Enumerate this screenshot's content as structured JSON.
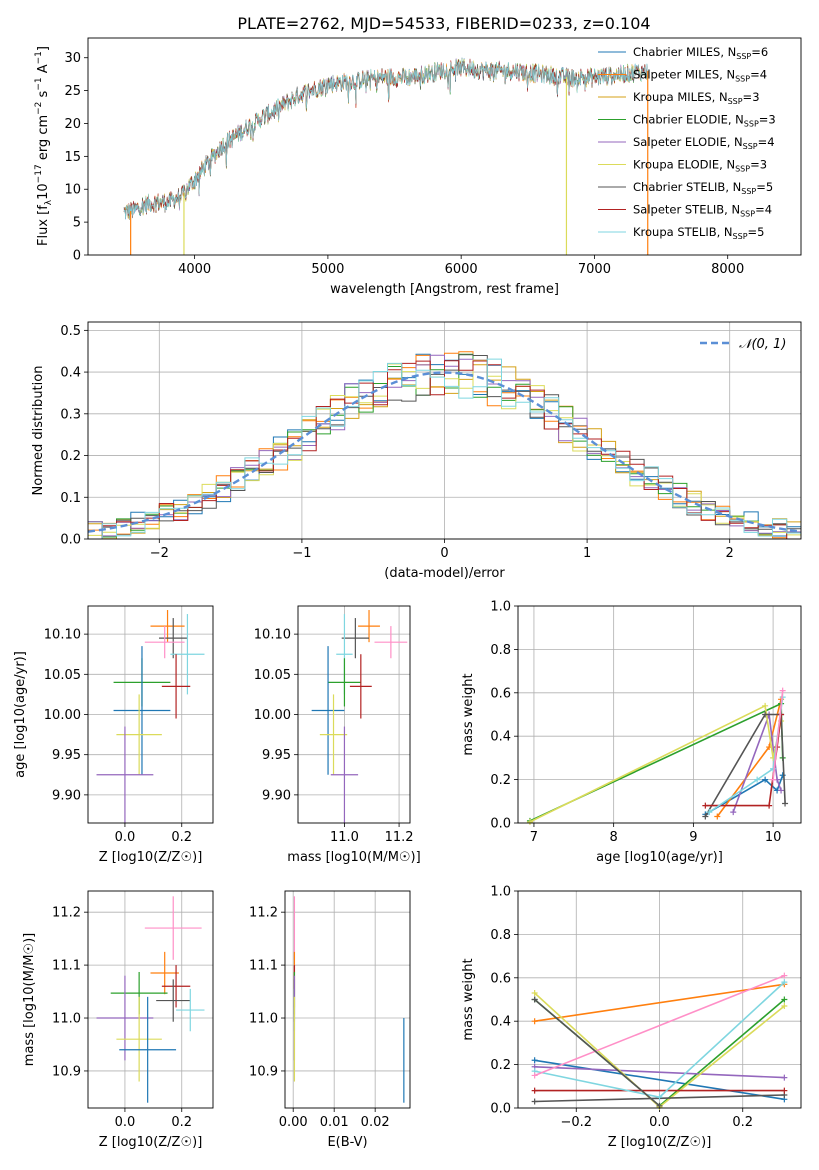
{
  "title": "PLATE=2762, MJD=54533, FIBERID=0233, z=0.104",
  "colors": {
    "chabrier_miles": "#1f77b4",
    "salpeter_miles": "#ff7f0e",
    "kroupa_miles": "#d4a017",
    "chabrier_elodie": "#2ca02c",
    "salpeter_elodie": "#9467bd",
    "kroupa_elodie": "#dbdb5a",
    "chabrier_stelib": "#555555",
    "salpeter_stelib": "#b22222",
    "kroupa_stelib": "#7fd6e0",
    "normal_curve": "#5b8fd6"
  },
  "chart_data": [
    {
      "type": "line",
      "title": "PLATE=2762, MJD=54533, FIBERID=0233, z=0.104",
      "xlabel": "wavelength [Angstrom, rest frame]",
      "ylabel_parts": [
        "Flux [f",
        "λ",
        "10",
        "−17",
        " erg cm",
        "−2",
        " s",
        "−1",
        " A",
        "−1",
        "]"
      ],
      "xlim": [
        3200,
        8550
      ],
      "ylim": [
        0,
        33
      ],
      "xticks": [
        "4000",
        "5000",
        "6000",
        "7000",
        "8000"
      ],
      "yticks": [
        "0",
        "5",
        "10",
        "15",
        "20",
        "25",
        "30"
      ],
      "spectrum_shape": {
        "x": [
          3470,
          3550,
          3600,
          3700,
          3800,
          3900,
          4000,
          4100,
          4200,
          4300,
          4400,
          4600,
          4800,
          5000,
          5200,
          5400,
          5600,
          5800,
          5900,
          6000,
          6200,
          6400,
          6600,
          6800,
          7000,
          7200,
          7400
        ],
        "y": [
          6.5,
          6.8,
          7.5,
          8.0,
          8.0,
          9.0,
          11.5,
          14.0,
          16.5,
          18.0,
          19.5,
          22.0,
          24.5,
          26.0,
          26.5,
          27.0,
          27.0,
          27.8,
          28.3,
          28.5,
          28.0,
          28.0,
          27.5,
          27.0,
          27.0,
          27.5,
          28.0
        ]
      },
      "dropouts": [
        {
          "series": "Salpeter MILES",
          "x": 3520
        },
        {
          "series": "Kroupa ELODIE",
          "x": 3920
        },
        {
          "series": "Kroupa ELODIE",
          "x": 6790
        },
        {
          "series": "Salpeter MILES",
          "x": 7400
        }
      ],
      "series": [
        {
          "name": "Chabrier MILES",
          "n": "6",
          "color": "#1f77b4"
        },
        {
          "name": "Salpeter MILES",
          "n": "4",
          "color": "#ff7f0e"
        },
        {
          "name": "Kroupa MILES",
          "n": "3",
          "color": "#d4a017"
        },
        {
          "name": "Chabrier ELODIE",
          "n": "3",
          "color": "#2ca02c"
        },
        {
          "name": "Salpeter ELODIE",
          "n": "4",
          "color": "#9467bd"
        },
        {
          "name": "Kroupa ELODIE",
          "n": "3",
          "color": "#dbdb5a"
        },
        {
          "name": "Chabrier STELIB",
          "n": "5",
          "color": "#555555"
        },
        {
          "name": "Salpeter STELIB",
          "n": "4",
          "color": "#b22222"
        },
        {
          "name": "Kroupa STELIB",
          "n": "5",
          "color": "#7fd6e0"
        }
      ],
      "legend_placement": "right",
      "grid": false
    },
    {
      "type": "area",
      "xlabel": "(data-model)/error",
      "ylabel": "Normed distribution",
      "xlim": [
        -2.5,
        2.5
      ],
      "ylim": [
        0,
        0.52
      ],
      "xticks": [
        "−2",
        "−1",
        "0",
        "1",
        "2"
      ],
      "yticks": [
        "0.0",
        "0.1",
        "0.2",
        "0.3",
        "0.4",
        "0.5"
      ],
      "grid": true,
      "legend": "𝒩(0, 1)",
      "legend_placement": "top-right",
      "bin_width": 0.1,
      "histogram_approximation": "N(0,1) density per bin with per-series deviations up to ±0.05"
    },
    {
      "type": "scatter",
      "xlabel": "Z [log10(Z/Z☉)]",
      "ylabel": "age  [log10(age/yr)]",
      "xlim": [
        -0.13,
        0.31
      ],
      "ylim": [
        9.865,
        10.135
      ],
      "xticks": [
        "0.0",
        "0.2"
      ],
      "yticks": [
        "9.90",
        "9.95",
        "10.00",
        "10.05",
        "10.10"
      ],
      "grid": true,
      "points": [
        {
          "color": "#ff7f0e",
          "x": 0.15,
          "y": 10.11,
          "xerr": 0.06,
          "yerr": 0.02
        },
        {
          "color": "#555555",
          "x": 0.17,
          "y": 10.095,
          "xerr": 0.05,
          "yerr": 0.025
        },
        {
          "color": "#7fd6e0",
          "x": 0.22,
          "y": 10.075,
          "xerr": 0.06,
          "yerr": 0.05
        },
        {
          "color": "#ff8fc7",
          "x": 0.14,
          "y": 10.09,
          "xerr": 0.07,
          "yerr": 0.02
        },
        {
          "color": "#2ca02c",
          "x": 0.06,
          "y": 10.04,
          "xerr": 0.1,
          "yerr": 0.03
        },
        {
          "color": "#b22222",
          "x": 0.18,
          "y": 10.035,
          "xerr": 0.05,
          "yerr": 0.04
        },
        {
          "color": "#1f77b4",
          "x": 0.06,
          "y": 10.005,
          "xerr": 0.1,
          "yerr": 0.08
        },
        {
          "color": "#dbdb5a",
          "x": 0.05,
          "y": 9.975,
          "xerr": 0.08,
          "yerr": 0.05
        },
        {
          "color": "#9467bd",
          "x": 0.0,
          "y": 9.925,
          "xerr": 0.1,
          "yerr": 0.06
        }
      ]
    },
    {
      "type": "scatter",
      "xlabel": "mass [log10(M/M☉)]",
      "ylabel": "",
      "xlim": [
        10.83,
        11.24
      ],
      "ylim": [
        9.865,
        10.135
      ],
      "xticks": [
        "11.0",
        "11.2"
      ],
      "yticks": [
        "9.90",
        "9.95",
        "10.00",
        "10.05",
        "10.10"
      ],
      "grid": true,
      "points": [
        {
          "color": "#ff7f0e",
          "x": 11.09,
          "y": 10.11,
          "xerr": 0.04,
          "yerr": 0.02
        },
        {
          "color": "#555555",
          "x": 11.04,
          "y": 10.095,
          "xerr": 0.05,
          "yerr": 0.025
        },
        {
          "color": "#ff8fc7",
          "x": 11.17,
          "y": 10.09,
          "xerr": 0.06,
          "yerr": 0.02
        },
        {
          "color": "#7fd6e0",
          "x": 11.0,
          "y": 10.075,
          "xerr": 0.03,
          "yerr": 0.05
        },
        {
          "color": "#2ca02c",
          "x": 11.0,
          "y": 10.04,
          "xerr": 0.06,
          "yerr": 0.03
        },
        {
          "color": "#b22222",
          "x": 11.06,
          "y": 10.035,
          "xerr": 0.04,
          "yerr": 0.04
        },
        {
          "color": "#1f77b4",
          "x": 10.94,
          "y": 10.005,
          "xerr": 0.06,
          "yerr": 0.08
        },
        {
          "color": "#dbdb5a",
          "x": 10.96,
          "y": 9.975,
          "xerr": 0.05,
          "yerr": 0.05
        },
        {
          "color": "#9467bd",
          "x": 11.0,
          "y": 9.925,
          "xerr": 0.05,
          "yerr": 0.06
        }
      ]
    },
    {
      "type": "line",
      "xlabel": "age  [log10(age/yr)]",
      "ylabel": "mass weight",
      "xlim": [
        6.8,
        10.35
      ],
      "ylim": [
        0,
        1.0
      ],
      "xticks": [
        "7",
        "8",
        "9",
        "10"
      ],
      "yticks": [
        "0.0",
        "0.2",
        "0.4",
        "0.6",
        "0.8",
        "1.0"
      ],
      "grid": true,
      "series": [
        {
          "color": "#1f77b4",
          "x": [
            9.15,
            9.9,
            10.05,
            10.12
          ],
          "y": [
            0.04,
            0.2,
            0.15,
            0.22
          ]
        },
        {
          "color": "#ff7f0e",
          "x": [
            9.3,
            9.95,
            10.1
          ],
          "y": [
            0.03,
            0.35,
            0.57
          ]
        },
        {
          "color": "#2ca02c",
          "x": [
            6.95,
            10.1,
            10.12
          ],
          "y": [
            0.01,
            0.55,
            0.3
          ]
        },
        {
          "color": "#9467bd",
          "x": [
            9.5,
            9.95,
            10.05,
            10.1
          ],
          "y": [
            0.05,
            0.5,
            0.2,
            0.15
          ]
        },
        {
          "color": "#dbdb5a",
          "x": [
            6.95,
            9.9,
            10.0,
            10.1
          ],
          "y": [
            0.005,
            0.54,
            0.3,
            0.47
          ]
        },
        {
          "color": "#555555",
          "x": [
            9.15,
            9.9,
            10.1,
            10.15
          ],
          "y": [
            0.03,
            0.5,
            0.5,
            0.09
          ]
        },
        {
          "color": "#b22222",
          "x": [
            9.15,
            9.95,
            10.05,
            10.1
          ],
          "y": [
            0.08,
            0.08,
            0.35,
            0.5
          ]
        },
        {
          "color": "#7fd6e0",
          "x": [
            9.2,
            9.8,
            10.0,
            10.12
          ],
          "y": [
            0.05,
            0.2,
            0.25,
            0.58
          ]
        },
        {
          "color": "#ff8fc7",
          "x": [
            10.0,
            10.12
          ],
          "y": [
            0.2,
            0.61
          ]
        }
      ]
    },
    {
      "type": "scatter",
      "xlabel": "Z [log10(Z/Z☉)]",
      "ylabel": "mass [log10(M/M☉)]",
      "xlim": [
        -0.13,
        0.31
      ],
      "ylim": [
        10.83,
        11.24
      ],
      "xticks": [
        "0.0",
        "0.2"
      ],
      "yticks": [
        "10.9",
        "11.0",
        "11.1",
        "11.2"
      ],
      "grid": true,
      "points": [
        {
          "color": "#ff8fc7",
          "x": 0.17,
          "y": 11.17,
          "xerr": 0.1,
          "yerr": 0.06
        },
        {
          "color": "#ff7f0e",
          "x": 0.14,
          "y": 11.085,
          "xerr": 0.05,
          "yerr": 0.04
        },
        {
          "color": "#b22222",
          "x": 0.18,
          "y": 11.06,
          "xerr": 0.05,
          "yerr": 0.04
        },
        {
          "color": "#2ca02c",
          "x": 0.05,
          "y": 11.047,
          "xerr": 0.1,
          "yerr": 0.04
        },
        {
          "color": "#555555",
          "x": 0.17,
          "y": 11.033,
          "xerr": 0.06,
          "yerr": 0.04
        },
        {
          "color": "#7fd6e0",
          "x": 0.23,
          "y": 11.015,
          "xerr": 0.05,
          "yerr": 0.04
        },
        {
          "color": "#9467bd",
          "x": 0.0,
          "y": 11.0,
          "xerr": 0.1,
          "yerr": 0.08
        },
        {
          "color": "#dbdb5a",
          "x": 0.05,
          "y": 10.96,
          "xerr": 0.08,
          "yerr": 0.08
        },
        {
          "color": "#1f77b4",
          "x": 0.08,
          "y": 10.94,
          "xerr": 0.1,
          "yerr": 0.1
        }
      ]
    },
    {
      "type": "scatter",
      "xlabel": "E(B-V)",
      "ylabel": "",
      "xlim": [
        -0.002,
        0.0285
      ],
      "ylim": [
        10.83,
        11.24
      ],
      "xticks": [
        "0.00",
        "0.01",
        "0.02"
      ],
      "yticks": [
        "10.9",
        "11.0",
        "11.1",
        "11.2"
      ],
      "grid": true,
      "points": [
        {
          "color": "#ff8fc7",
          "x": 0.0003,
          "y": 11.17,
          "xerr": 0,
          "yerr": 0.06
        },
        {
          "color": "#ff7f0e",
          "x": 0.0003,
          "y": 11.085,
          "xerr": 0,
          "yerr": 0.04
        },
        {
          "color": "#b22222",
          "x": 0.0003,
          "y": 11.06,
          "xerr": 0,
          "yerr": 0.04
        },
        {
          "color": "#2ca02c",
          "x": 0.0003,
          "y": 11.047,
          "xerr": 0,
          "yerr": 0.04
        },
        {
          "color": "#555555",
          "x": 0.0003,
          "y": 11.033,
          "xerr": 0,
          "yerr": 0.04
        },
        {
          "color": "#7fd6e0",
          "x": 0.0003,
          "y": 11.015,
          "xerr": 0,
          "yerr": 0.04
        },
        {
          "color": "#9467bd",
          "x": 0.0003,
          "y": 11.0,
          "xerr": 0,
          "yerr": 0.08
        },
        {
          "color": "#dbdb5a",
          "x": 0.0003,
          "y": 10.96,
          "xerr": 0,
          "yerr": 0.08
        },
        {
          "color": "#1f77b4",
          "x": 0.027,
          "y": 10.92,
          "xerr": 0,
          "yerr": 0.08
        }
      ]
    },
    {
      "type": "line",
      "xlabel": "Z [log10(Z/Z☉)]",
      "ylabel": "mass weight",
      "xlim": [
        -0.34,
        0.34
      ],
      "ylim": [
        0,
        1.0
      ],
      "xticks": [
        "−0.2",
        "0.0",
        "0.2"
      ],
      "yticks": [
        "0.0",
        "0.2",
        "0.4",
        "0.6",
        "0.8",
        "1.0"
      ],
      "grid": true,
      "series": [
        {
          "color": "#1f77b4",
          "x": [
            -0.3,
            0.3
          ],
          "y": [
            0.22,
            0.04
          ]
        },
        {
          "color": "#ff7f0e",
          "x": [
            -0.3,
            0.3
          ],
          "y": [
            0.4,
            0.57
          ]
        },
        {
          "color": "#2ca02c",
          "x": [
            -0.3,
            0.0,
            0.3
          ],
          "y": [
            0.5,
            0.01,
            0.5
          ]
        },
        {
          "color": "#9467bd",
          "x": [
            -0.3,
            0.3
          ],
          "y": [
            0.19,
            0.14
          ]
        },
        {
          "color": "#dbdb5a",
          "x": [
            -0.3,
            0.0,
            0.3
          ],
          "y": [
            0.53,
            0.005,
            0.47
          ]
        },
        {
          "color": "#555555",
          "x": [
            -0.3,
            0.3
          ],
          "y": [
            0.03,
            0.06
          ]
        },
        {
          "color": "#b22222",
          "x": [
            -0.3,
            0.3
          ],
          "y": [
            0.08,
            0.08
          ]
        },
        {
          "color": "#7fd6e0",
          "x": [
            -0.3,
            0.0,
            0.3
          ],
          "y": [
            0.17,
            0.05,
            0.58
          ]
        },
        {
          "color": "#ff8fc7",
          "x": [
            -0.3,
            0.3
          ],
          "y": [
            0.15,
            0.61
          ]
        },
        {
          "color": "#555555",
          "x": [
            -0.3,
            0.0
          ],
          "y": [
            0.5,
            0.01
          ]
        }
      ]
    }
  ]
}
